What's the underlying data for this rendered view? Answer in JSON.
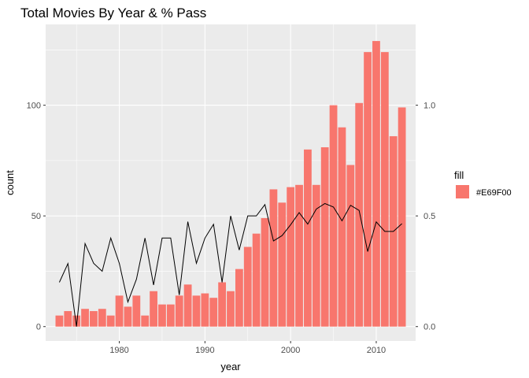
{
  "chart_data": {
    "type": "bar",
    "title": "Total Movies By Year & % Pass",
    "xlabel": "year",
    "ylabel": "count",
    "xlim": [
      1971.4,
      2014.6
    ],
    "ylim": [
      -6.5,
      136.5
    ],
    "y2lim": [
      -0.065,
      1.365
    ],
    "x_ticks": [
      1980,
      1990,
      2000,
      2010
    ],
    "y_ticks": [
      0,
      50,
      100
    ],
    "y2_ticks": [
      0,
      0.5,
      1.0
    ],
    "x_tick_labels": [
      "1980",
      "1990",
      "2000",
      "2010"
    ],
    "y_tick_labels": [
      "0",
      "50",
      "100"
    ],
    "y2_tick_labels": [
      "0.0",
      "0.5",
      "1.0"
    ],
    "grid": true,
    "legend": {
      "position": "right",
      "title": "fill",
      "label": "#E69F00",
      "swatch_color": "#F8766D"
    },
    "bar_color": "#F8766D",
    "line_color": "#000000",
    "panel_bg": "#EBEBEB",
    "years": [
      1973,
      1974,
      1975,
      1976,
      1977,
      1978,
      1979,
      1980,
      1981,
      1982,
      1983,
      1984,
      1985,
      1986,
      1987,
      1988,
      1989,
      1990,
      1991,
      1992,
      1993,
      1994,
      1995,
      1996,
      1997,
      1998,
      1999,
      2000,
      2001,
      2002,
      2003,
      2004,
      2005,
      2006,
      2007,
      2008,
      2009,
      2010,
      2011,
      2012,
      2013
    ],
    "series": [
      {
        "type": "bar",
        "axis": "left",
        "values": [
          5,
          7,
          5,
          8,
          7,
          8,
          5,
          14,
          9,
          14,
          5,
          16,
          10,
          10,
          14,
          19,
          14,
          15,
          13,
          20,
          16,
          26,
          36,
          42,
          49,
          62,
          56,
          63,
          64,
          80,
          64,
          81,
          100,
          90,
          73,
          101,
          124,
          129,
          124,
          86,
          99
        ]
      },
      {
        "type": "line",
        "axis": "right",
        "values": [
          0.2,
          0.285,
          0.0,
          0.375,
          0.286,
          0.25,
          0.4,
          0.286,
          0.111,
          0.214,
          0.4,
          0.188,
          0.4,
          0.4,
          0.143,
          0.474,
          0.286,
          0.4,
          0.462,
          0.2,
          0.5,
          0.346,
          0.5,
          0.5,
          0.551,
          0.387,
          0.411,
          0.46,
          0.515,
          0.463,
          0.531,
          0.556,
          0.54,
          0.478,
          0.548,
          0.525,
          0.339,
          0.473,
          0.43,
          0.43,
          0.465
        ]
      }
    ]
  }
}
